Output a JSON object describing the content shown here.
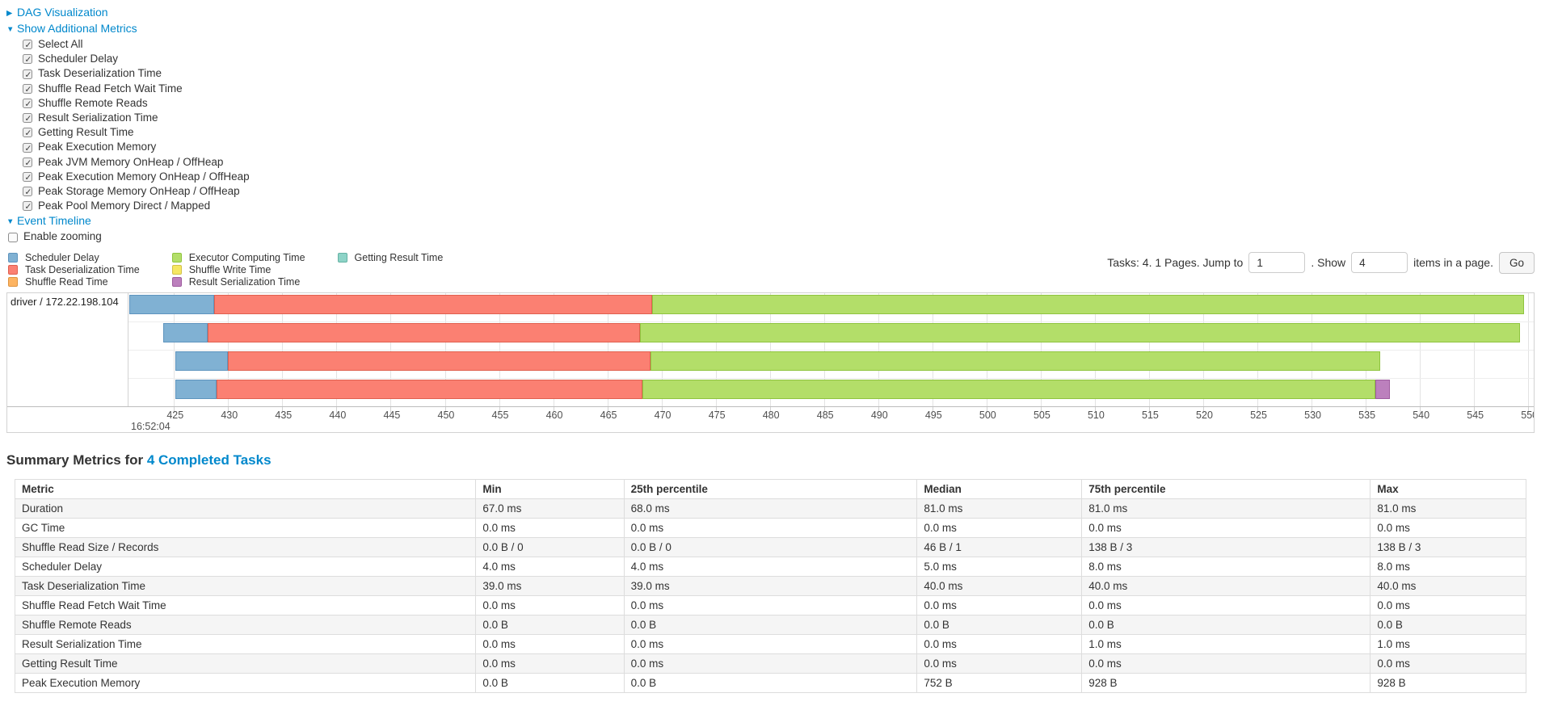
{
  "panels": {
    "dag": {
      "arrow": "▶",
      "label": "DAG Visualization"
    },
    "metrics": {
      "arrow": "▼",
      "label": "Show Additional Metrics"
    },
    "timeline": {
      "arrow": "▼",
      "label": "Event Timeline"
    }
  },
  "metrics_panel": {
    "items": [
      {
        "label": "Select All",
        "checked": true
      },
      {
        "label": "Scheduler Delay",
        "checked": true
      },
      {
        "label": "Task Deserialization Time",
        "checked": true
      },
      {
        "label": "Shuffle Read Fetch Wait Time",
        "checked": true
      },
      {
        "label": "Shuffle Remote Reads",
        "checked": true
      },
      {
        "label": "Result Serialization Time",
        "checked": true
      },
      {
        "label": "Getting Result Time",
        "checked": true
      },
      {
        "label": "Peak Execution Memory",
        "checked": true
      },
      {
        "label": "Peak JVM Memory OnHeap / OffHeap",
        "checked": true
      },
      {
        "label": "Peak Execution Memory OnHeap / OffHeap",
        "checked": true
      },
      {
        "label": "Peak Storage Memory OnHeap / OffHeap",
        "checked": true
      },
      {
        "label": "Peak Pool Memory Direct / Mapped",
        "checked": true
      }
    ]
  },
  "enable_zooming": {
    "label": "Enable zooming",
    "checked": false
  },
  "legend": {
    "columns": [
      [
        {
          "label": "Scheduler Delay",
          "color": "#80B1D3",
          "border": "#5E94BE"
        },
        {
          "label": "Task Deserialization Time",
          "color": "#FB8072",
          "border": "#E0604F"
        },
        {
          "label": "Shuffle Read Time",
          "color": "#FDB462",
          "border": "#DE9440"
        }
      ],
      [
        {
          "label": "Executor Computing Time",
          "color": "#B3DE69",
          "border": "#8FC43F"
        },
        {
          "label": "Shuffle Write Time",
          "color": "#F5E763",
          "border": "#D2C14A"
        },
        {
          "label": "Result Serialization Time",
          "color": "#BC80BD",
          "border": "#9E5C9F"
        }
      ],
      [
        {
          "label": "Getting Result Time",
          "color": "#8DD3C7",
          "border": "#65B2A4"
        }
      ]
    ]
  },
  "pagination": {
    "tasks_text": "Tasks: 4. 1 Pages. Jump to",
    "jump_value": "1",
    "show_text": ". Show",
    "show_value": "4",
    "items_text": "items in a page.",
    "go_label": "Go"
  },
  "chart_data": {
    "type": "timeline",
    "title": "Event Timeline",
    "group_label": "driver / 172.22.198.104",
    "x_axis": {
      "unit": "milliseconds within second 16:52:04",
      "major_label": "16:52:04",
      "min": 420.8,
      "max": 550.5,
      "tick_start": 425,
      "tick_end": 550,
      "tick_step": 5
    },
    "series_colors": {
      "scheduler_delay": {
        "fill": "#80B1D3",
        "border": "#5E94BE"
      },
      "task_deserialization": {
        "fill": "#FB8072",
        "border": "#E0604F"
      },
      "shuffle_read": {
        "fill": "#FDB462",
        "border": "#DE9440"
      },
      "executor_computing": {
        "fill": "#B3DE69",
        "border": "#8FC43F"
      },
      "shuffle_write": {
        "fill": "#F5E763",
        "border": "#D2C14A"
      },
      "result_serialization": {
        "fill": "#BC80BD",
        "border": "#9E5C9F"
      },
      "getting_result": {
        "fill": "#8DD3C7",
        "border": "#65B2A4"
      }
    },
    "tasks": [
      {
        "row": 1,
        "segments": [
          {
            "series": "scheduler_delay",
            "start": 420.9,
            "end": 428.7
          },
          {
            "series": "task_deserialization",
            "start": 428.7,
            "end": 469.1
          },
          {
            "series": "executor_computing",
            "start": 469.1,
            "end": 549.6
          }
        ]
      },
      {
        "row": 2,
        "segments": [
          {
            "series": "scheduler_delay",
            "start": 424.0,
            "end": 428.1
          },
          {
            "series": "task_deserialization",
            "start": 428.1,
            "end": 468.0
          },
          {
            "series": "executor_computing",
            "start": 468.0,
            "end": 549.2
          }
        ]
      },
      {
        "row": 3,
        "segments": [
          {
            "series": "scheduler_delay",
            "start": 425.1,
            "end": 430.0
          },
          {
            "series": "task_deserialization",
            "start": 430.0,
            "end": 469.0
          },
          {
            "series": "executor_computing",
            "start": 469.0,
            "end": 536.3
          }
        ]
      },
      {
        "row": 4,
        "segments": [
          {
            "series": "scheduler_delay",
            "start": 425.1,
            "end": 428.9
          },
          {
            "series": "task_deserialization",
            "start": 428.9,
            "end": 468.2
          },
          {
            "series": "executor_computing",
            "start": 468.2,
            "end": 535.9
          },
          {
            "series": "result_serialization",
            "start": 535.9,
            "end": 537.2
          }
        ]
      }
    ]
  },
  "summary": {
    "title_prefix": "Summary Metrics for ",
    "title_link": "4 Completed Tasks",
    "table": {
      "headers": [
        "Metric",
        "Min",
        "25th percentile",
        "Median",
        "75th percentile",
        "Max"
      ],
      "rows": [
        {
          "metric": "Duration",
          "values": [
            "67.0 ms",
            "68.0 ms",
            "81.0 ms",
            "81.0 ms",
            "81.0 ms"
          ]
        },
        {
          "metric": "GC Time",
          "values": [
            "0.0 ms",
            "0.0 ms",
            "0.0 ms",
            "0.0 ms",
            "0.0 ms"
          ]
        },
        {
          "metric": "Shuffle Read Size / Records",
          "values": [
            "0.0 B / 0",
            "0.0 B / 0",
            "46 B / 1",
            "138 B / 3",
            "138 B / 3"
          ]
        },
        {
          "metric": "Scheduler Delay",
          "values": [
            "4.0 ms",
            "4.0 ms",
            "5.0 ms",
            "8.0 ms",
            "8.0 ms"
          ]
        },
        {
          "metric": "Task Deserialization Time",
          "values": [
            "39.0 ms",
            "39.0 ms",
            "40.0 ms",
            "40.0 ms",
            "40.0 ms"
          ]
        },
        {
          "metric": "Shuffle Read Fetch Wait Time",
          "values": [
            "0.0 ms",
            "0.0 ms",
            "0.0 ms",
            "0.0 ms",
            "0.0 ms"
          ]
        },
        {
          "metric": "Shuffle Remote Reads",
          "values": [
            "0.0 B",
            "0.0 B",
            "0.0 B",
            "0.0 B",
            "0.0 B"
          ]
        },
        {
          "metric": "Result Serialization Time",
          "values": [
            "0.0 ms",
            "0.0 ms",
            "0.0 ms",
            "1.0 ms",
            "1.0 ms"
          ]
        },
        {
          "metric": "Getting Result Time",
          "values": [
            "0.0 ms",
            "0.0 ms",
            "0.0 ms",
            "0.0 ms",
            "0.0 ms"
          ]
        },
        {
          "metric": "Peak Execution Memory",
          "values": [
            "0.0 B",
            "0.0 B",
            "752 B",
            "928 B",
            "928 B"
          ]
        }
      ]
    }
  },
  "colors": {
    "link": "#0088cc"
  }
}
